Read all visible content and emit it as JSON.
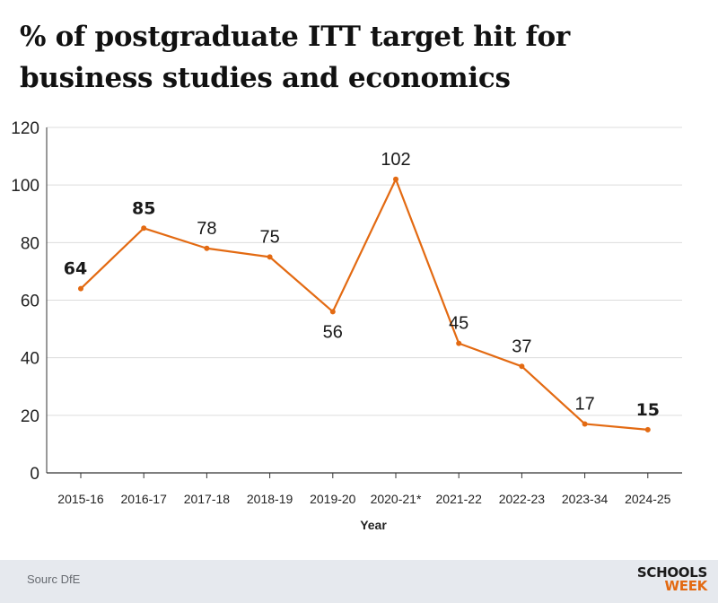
{
  "title": "% of postgraduate ITT target hit for business studies and economics",
  "footer": {
    "source": "Sourc DfE",
    "brand_line1": "SCHOOLS",
    "brand_line2": "WEEK"
  },
  "colors": {
    "line": "#e36a12",
    "grid": "#dcdcdc",
    "axis": "#333333",
    "footer_bg": "#e6e9ee",
    "brand_accent": "#e36a12"
  },
  "chart_data": {
    "type": "line",
    "title": "% of postgraduate ITT target hit for business studies and economics",
    "xlabel": "Year",
    "ylabel": "",
    "ylim": [
      0,
      120
    ],
    "yticks": [
      0,
      20,
      40,
      60,
      80,
      100,
      120
    ],
    "grid": true,
    "categories": [
      "2015-16",
      "2016-17",
      "2017-18",
      "2018-19",
      "2019-20",
      "2020-21*",
      "2021-22",
      "2022-23",
      "2023-34",
      "2024-25"
    ],
    "series": [
      {
        "values": [
          64,
          85,
          78,
          75,
          56,
          102,
          45,
          37,
          17,
          15
        ],
        "data_labels": [
          "64",
          "85",
          "78",
          "75",
          "56",
          "102",
          "45",
          "37",
          "17",
          "15"
        ]
      }
    ]
  }
}
